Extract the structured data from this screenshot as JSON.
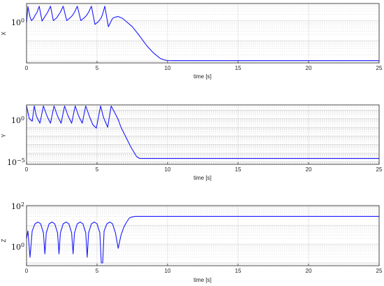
{
  "chart_data": [
    {
      "type": "line",
      "id": "X",
      "xlabel": "time [s]",
      "ylabel": "X",
      "xlim": [
        0,
        25
      ],
      "xticks": [
        "0",
        "5",
        "10",
        "15",
        "20",
        "25"
      ],
      "yscale": "log",
      "ytick_labels": [
        {
          "text": "10",
          "exp": "0"
        }
      ],
      "grid": true,
      "color": "#1a1aff",
      "x": [
        0,
        0.1,
        0.25,
        0.35,
        0.5,
        0.6,
        0.75,
        0.9,
        1.1,
        1.25,
        1.35,
        1.5,
        1.7,
        1.9,
        2.15,
        2.25,
        2.4,
        2.6,
        2.85,
        3.1,
        3.25,
        3.4,
        3.6,
        3.85,
        4.1,
        4.25,
        4.4,
        4.6,
        4.85,
        5.1,
        5.3,
        5.4,
        5.55,
        5.8,
        6.1,
        6.3,
        6.5,
        6.8,
        7.0,
        7.5,
        8.0,
        8.5,
        9.0,
        9.5,
        9.8,
        10.0,
        10.5,
        12,
        15,
        20,
        25
      ],
      "y": [
        0.8,
        5.0,
        1.5,
        1.0,
        1.3,
        1.8,
        2.6,
        5.2,
        0.95,
        1.4,
        1.8,
        2.6,
        5.2,
        1.0,
        1.4,
        1.8,
        2.6,
        5.2,
        1.0,
        1.4,
        1.8,
        2.6,
        5.2,
        1.0,
        1.4,
        1.8,
        2.6,
        5.2,
        0.65,
        0.9,
        1.4,
        2.2,
        5.2,
        0.5,
        1.3,
        1.5,
        1.6,
        1.3,
        1.0,
        0.5,
        0.18,
        0.06,
        0.025,
        0.013,
        0.011,
        0.0105,
        0.0103,
        0.0103,
        0.0103,
        0.0103,
        0.0103
      ]
    },
    {
      "type": "line",
      "id": "Y",
      "xlabel": "time [s]",
      "ylabel": "Y",
      "xlim": [
        0,
        25
      ],
      "xticks": [
        "0",
        "5",
        "10",
        "15",
        "20",
        "25"
      ],
      "yscale": "log",
      "ytick_labels": [
        {
          "text": "10",
          "exp": "0"
        },
        {
          "text": "10",
          "exp": "−5"
        }
      ],
      "grid": true,
      "color": "#1a1aff",
      "x": [
        0,
        0.2,
        0.4,
        0.55,
        0.7,
        0.95,
        1.2,
        1.45,
        1.7,
        1.95,
        2.2,
        2.45,
        2.7,
        2.95,
        3.2,
        3.45,
        3.7,
        3.95,
        4.2,
        4.45,
        4.7,
        4.95,
        5.25,
        5.45,
        5.75,
        6.0,
        6.25,
        6.5,
        6.7,
        7.0,
        7.4,
        7.8,
        8.0,
        8.3,
        10,
        15,
        20,
        25
      ],
      "y": [
        30,
        1,
        0.5,
        30,
        2,
        0.3,
        30,
        2,
        0.3,
        30,
        2,
        0.3,
        30,
        2,
        0.3,
        30,
        2,
        0.3,
        30,
        2,
        0.2,
        0.08,
        30,
        1.5,
        0.1,
        30,
        5,
        0.8,
        0.1,
        0.01,
        0.0005,
        4e-05,
        2.5e-05,
        2.4e-05,
        2.4e-05,
        2.4e-05,
        2.4e-05,
        2.4e-05
      ]
    },
    {
      "type": "line",
      "id": "Z",
      "xlabel": "time [s]",
      "ylabel": "Z",
      "xlim": [
        0,
        25
      ],
      "xticks": [
        "0",
        "5",
        "10",
        "15",
        "20",
        "25"
      ],
      "yscale": "log",
      "ytick_labels": [
        {
          "text": "10",
          "exp": "2"
        },
        {
          "text": "10",
          "exp": "0"
        }
      ],
      "grid": true,
      "color": "#1a1aff",
      "x": [
        0,
        0.1,
        0.25,
        0.4,
        0.6,
        0.8,
        1.0,
        1.2,
        1.3,
        1.4,
        1.6,
        1.8,
        2.0,
        2.2,
        2.3,
        2.4,
        2.6,
        2.8,
        3.0,
        3.2,
        3.3,
        3.4,
        3.6,
        3.8,
        4.0,
        4.2,
        4.3,
        4.4,
        4.6,
        4.8,
        5.0,
        5.2,
        5.3,
        5.4,
        5.5,
        5.7,
        5.9,
        6.1,
        6.3,
        6.5,
        6.7,
        6.9,
        7.1,
        7.3,
        7.5,
        7.7,
        8.0,
        8.5,
        10,
        15,
        20,
        25
      ],
      "y": [
        2,
        5,
        0.2,
        5,
        12,
        15,
        12,
        4,
        0.3,
        4,
        12,
        15,
        12,
        4,
        0.3,
        4,
        12,
        15,
        12,
        4,
        0.3,
        4,
        12,
        15,
        12,
        4,
        0.2,
        4,
        12,
        15,
        12,
        4,
        0.1,
        0.1,
        5,
        12,
        15,
        12,
        4,
        0.6,
        3,
        8,
        15,
        25,
        28,
        30,
        30,
        30,
        30,
        30,
        30,
        30
      ]
    }
  ]
}
